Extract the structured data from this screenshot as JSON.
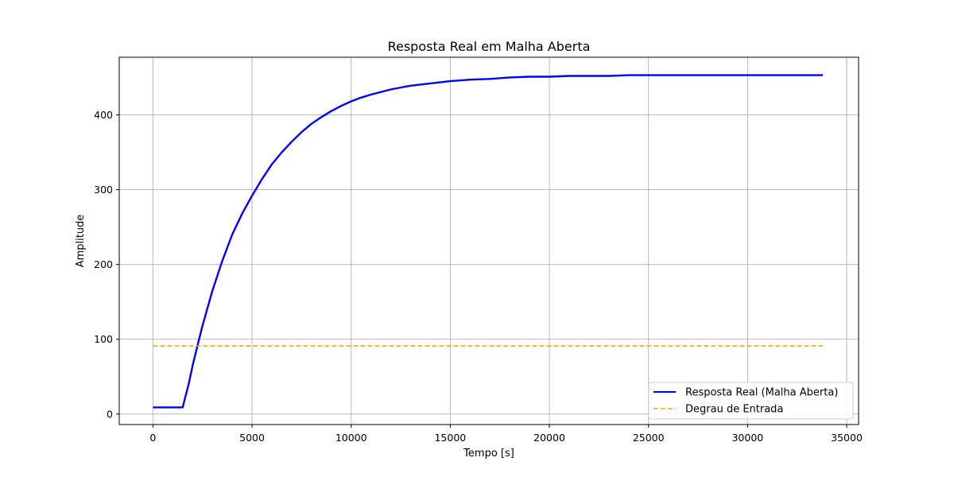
{
  "chart_data": {
    "type": "line",
    "title": "Resposta Real em Malha Aberta",
    "xlabel": "Tempo [s]",
    "ylabel": "Amplitude",
    "xlim": [
      -1700,
      35600
    ],
    "ylim": [
      -14,
      477
    ],
    "xticks": [
      0,
      5000,
      10000,
      15000,
      20000,
      25000,
      30000,
      35000
    ],
    "yticks": [
      0,
      100,
      200,
      300,
      400
    ],
    "grid": true,
    "legend": "lower-right",
    "series": [
      {
        "name": "Resposta Real (Malha Aberta)",
        "color": "#0000ff",
        "style": "solid",
        "x": [
          0,
          1000,
          1500,
          1800,
          2000,
          2250,
          2500,
          3000,
          3500,
          4000,
          4500,
          5000,
          5500,
          6000,
          6500,
          7000,
          7500,
          8000,
          8500,
          9000,
          9500,
          10000,
          10500,
          11000,
          12000,
          13000,
          14000,
          15000,
          16000,
          17000,
          18000,
          19000,
          20000,
          21000,
          22000,
          23000,
          24000,
          25000,
          26000,
          27000,
          28000,
          29000,
          30000,
          31000,
          32000,
          33000,
          33800
        ],
        "y": [
          9,
          9,
          9,
          40,
          65,
          92,
          118,
          165,
          205,
          240,
          268,
          292,
          314,
          334,
          350,
          364,
          377,
          388,
          397,
          405,
          412,
          418,
          423,
          427,
          434,
          439,
          442,
          445,
          447,
          448,
          450,
          451,
          451,
          452,
          452,
          452,
          453,
          453,
          453,
          453,
          453,
          453,
          453,
          453,
          453,
          453,
          453
        ]
      },
      {
        "name": "Degrau de Entrada",
        "color": "#ffa500",
        "style": "dashed",
        "x": [
          0,
          33800
        ],
        "y": [
          91,
          91
        ]
      }
    ]
  }
}
